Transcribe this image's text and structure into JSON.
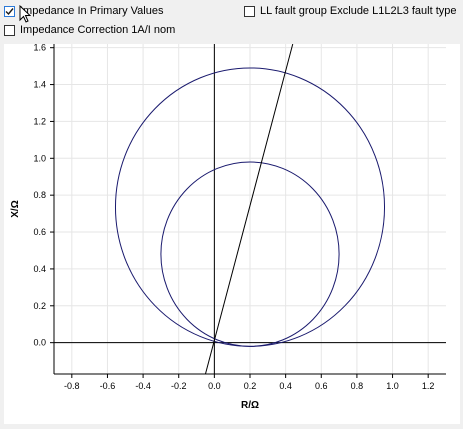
{
  "options": {
    "impedance_primary": {
      "label": "Impedance In Primary Values",
      "checked": true
    },
    "impedance_correction": {
      "label": "Impedance Correction 1A/I nom",
      "checked": false
    },
    "ll_fault_group": {
      "label": "LL fault group Exclude L1L2L3 fault type",
      "checked": false
    }
  },
  "colors": {
    "circle": "#1a1a6e",
    "line": "#000000",
    "grid": "#e6e6e6",
    "checkbox_accent": "#2b79d8"
  },
  "chart_data": {
    "type": "line",
    "xlabel": "R/Ω",
    "ylabel": "X/Ω",
    "xlim": [
      -0.9,
      1.3
    ],
    "ylim": [
      -0.17,
      1.62
    ],
    "grid": true,
    "x_ticks": [
      -0.8,
      -0.6,
      -0.4,
      -0.2,
      0.0,
      0.2,
      0.4,
      0.6,
      0.8,
      1.0,
      1.2
    ],
    "x_tick_labels": [
      "-0.8",
      "-0.6",
      "-0.4",
      "-0.2",
      "0.0",
      "0.2",
      "0.4",
      "0.6",
      "0.8",
      "1.0",
      "1.2"
    ],
    "y_ticks": [
      0.0,
      0.2,
      0.4,
      0.6,
      0.8,
      1.0,
      1.2,
      1.4,
      1.6
    ],
    "y_tick_labels": [
      "0.0",
      "0.2",
      "0.4",
      "0.6",
      "0.8",
      "1.0",
      "1.2",
      "1.4",
      "1.6"
    ],
    "series": [
      {
        "shape": "circle",
        "center": [
          0.2,
          0.735
        ],
        "radius": 0.755
      },
      {
        "shape": "circle",
        "center": [
          0.2,
          0.48
        ],
        "radius": 0.5
      },
      {
        "shape": "line",
        "points": [
          [
            -0.05,
            -0.17
          ],
          [
            0.44,
            1.62
          ]
        ]
      }
    ]
  }
}
